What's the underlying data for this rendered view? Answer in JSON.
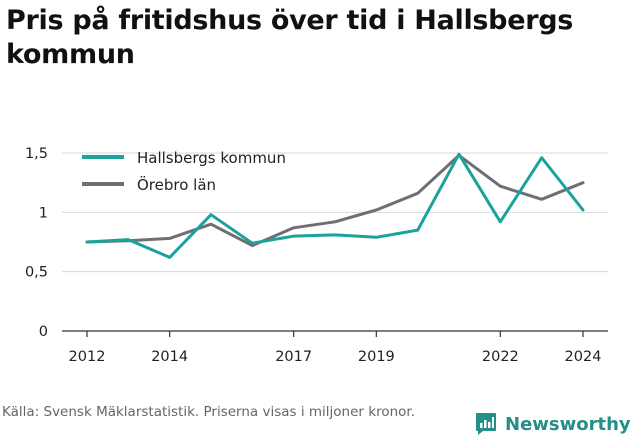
{
  "title": "Pris på fritidshus över tid i Hallsbergs kommun",
  "source": "Källa: Svensk Mäklarstatistik. Priserna visas i miljoner kronor.",
  "brand": {
    "name": "Newsworthy",
    "icon": "newsworthy-logo-icon",
    "color": "#238e8a"
  },
  "chart_data": {
    "type": "line",
    "x": [
      2012,
      2013,
      2014,
      2015,
      2016,
      2017,
      2018,
      2019,
      2020,
      2021,
      2022,
      2023,
      2024
    ],
    "x_ticks": [
      2012,
      2014,
      2017,
      2019,
      2022,
      2024
    ],
    "x_tick_labels": [
      "2012",
      "2014",
      "2017",
      "2019",
      "2022",
      "2024"
    ],
    "ylim": [
      0,
      1.5
    ],
    "y_ticks": [
      0,
      0.5,
      1,
      1.5
    ],
    "y_tick_labels": [
      "0",
      "0,5",
      "1",
      "1,5"
    ],
    "grid": true,
    "legend_position": "top-left",
    "series": [
      {
        "name": "Hallsbergs kommun",
        "color": "#1aa39b",
        "values": [
          0.75,
          0.77,
          0.62,
          0.98,
          0.74,
          0.8,
          0.81,
          0.79,
          0.85,
          1.49,
          0.92,
          1.46,
          1.02
        ]
      },
      {
        "name": "Örebro län",
        "color": "#6e6e73",
        "values": [
          0.75,
          0.76,
          0.78,
          0.9,
          0.72,
          0.87,
          0.92,
          1.02,
          1.16,
          1.48,
          1.22,
          1.11,
          1.25
        ]
      }
    ]
  }
}
